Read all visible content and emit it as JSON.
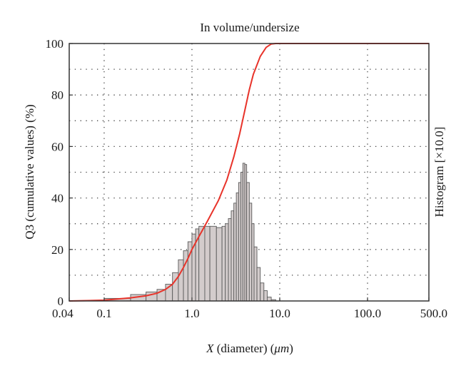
{
  "chart_data": {
    "type": "histogram_with_line",
    "title": "In volume/undersize",
    "xlabel_prefix": "X",
    "xlabel": " (diameter) (",
    "xlabel_unit": "μm",
    "xlabel_suffix": ")",
    "ylabel": "Q3 (cumulative values) (%)",
    "y2label": "Histogram [×10.0]",
    "x_scale": "log",
    "xlim": [
      0.04,
      500.0
    ],
    "ylim": [
      0,
      100
    ],
    "x_ticks": [
      {
        "value": 0.04,
        "label": "0.04"
      },
      {
        "value": 0.1,
        "label": "0.1"
      },
      {
        "value": 1.0,
        "label": "1.0"
      },
      {
        "value": 10.0,
        "label": "10.0"
      },
      {
        "value": 100.0,
        "label": "100.0"
      },
      {
        "value": 500.0,
        "label": "500.0"
      }
    ],
    "y_ticks": [
      {
        "value": 0,
        "label": "0"
      },
      {
        "value": 20,
        "label": "20"
      },
      {
        "value": 40,
        "label": "40"
      },
      {
        "value": 60,
        "label": "60"
      },
      {
        "value": 80,
        "label": "80"
      },
      {
        "value": 100,
        "label": "100"
      }
    ],
    "grid": true,
    "grid_style": "dotted",
    "histogram": {
      "name": "Histogram",
      "fill": "#d3cccc",
      "stroke": "#5a5a5a",
      "bins": [
        {
          "x0": 0.1,
          "x1": 0.2,
          "y": 1.0
        },
        {
          "x0": 0.2,
          "x1": 0.3,
          "y": 2.5
        },
        {
          "x0": 0.3,
          "x1": 0.4,
          "y": 3.5
        },
        {
          "x0": 0.4,
          "x1": 0.5,
          "y": 4.5
        },
        {
          "x0": 0.5,
          "x1": 0.6,
          "y": 6.5
        },
        {
          "x0": 0.6,
          "x1": 0.7,
          "y": 11
        },
        {
          "x0": 0.7,
          "x1": 0.8,
          "y": 16
        },
        {
          "x0": 0.8,
          "x1": 0.9,
          "y": 19.5
        },
        {
          "x0": 0.9,
          "x1": 1.0,
          "y": 23
        },
        {
          "x0": 1.0,
          "x1": 1.1,
          "y": 26
        },
        {
          "x0": 1.1,
          "x1": 1.2,
          "y": 28
        },
        {
          "x0": 1.2,
          "x1": 1.4,
          "y": 29
        },
        {
          "x0": 1.4,
          "x1": 1.6,
          "y": 29
        },
        {
          "x0": 1.6,
          "x1": 1.9,
          "y": 29
        },
        {
          "x0": 1.9,
          "x1": 2.2,
          "y": 28.5
        },
        {
          "x0": 2.2,
          "x1": 2.4,
          "y": 29
        },
        {
          "x0": 2.4,
          "x1": 2.6,
          "y": 30
        },
        {
          "x0": 2.6,
          "x1": 2.8,
          "y": 32
        },
        {
          "x0": 2.8,
          "x1": 3.0,
          "y": 35
        },
        {
          "x0": 3.0,
          "x1": 3.2,
          "y": 38
        },
        {
          "x0": 3.2,
          "x1": 3.4,
          "y": 42
        },
        {
          "x0": 3.4,
          "x1": 3.6,
          "y": 46
        },
        {
          "x0": 3.6,
          "x1": 3.8,
          "y": 50
        },
        {
          "x0": 3.8,
          "x1": 4.0,
          "y": 53.5
        },
        {
          "x0": 4.0,
          "x1": 4.2,
          "y": 53
        },
        {
          "x0": 4.2,
          "x1": 4.5,
          "y": 46
        },
        {
          "x0": 4.5,
          "x1": 4.8,
          "y": 38
        },
        {
          "x0": 4.8,
          "x1": 5.1,
          "y": 30
        },
        {
          "x0": 5.1,
          "x1": 5.5,
          "y": 21
        },
        {
          "x0": 5.5,
          "x1": 6.0,
          "y": 13
        },
        {
          "x0": 6.0,
          "x1": 6.6,
          "y": 7
        },
        {
          "x0": 6.6,
          "x1": 7.2,
          "y": 4
        },
        {
          "x0": 7.2,
          "x1": 8.0,
          "y": 1.5
        },
        {
          "x0": 8.0,
          "x1": 9.0,
          "y": 0.5
        }
      ]
    },
    "line": {
      "name": "Q3",
      "color": "#e8332a",
      "points": [
        [
          0.04,
          0
        ],
        [
          0.1,
          0.3
        ],
        [
          0.2,
          1.2
        ],
        [
          0.3,
          2.0
        ],
        [
          0.4,
          3.0
        ],
        [
          0.5,
          4.5
        ],
        [
          0.6,
          6.5
        ],
        [
          0.7,
          9.5
        ],
        [
          0.8,
          13
        ],
        [
          0.9,
          16.5
        ],
        [
          1.0,
          20
        ],
        [
          1.2,
          25
        ],
        [
          1.5,
          31
        ],
        [
          2.0,
          39
        ],
        [
          2.5,
          47
        ],
        [
          3.0,
          56
        ],
        [
          3.5,
          65
        ],
        [
          4.0,
          74
        ],
        [
          4.5,
          82
        ],
        [
          5.0,
          88
        ],
        [
          6.0,
          95
        ],
        [
          7.0,
          98.5
        ],
        [
          8.0,
          99.8
        ],
        [
          9.0,
          100
        ],
        [
          500.0,
          100
        ]
      ]
    }
  }
}
